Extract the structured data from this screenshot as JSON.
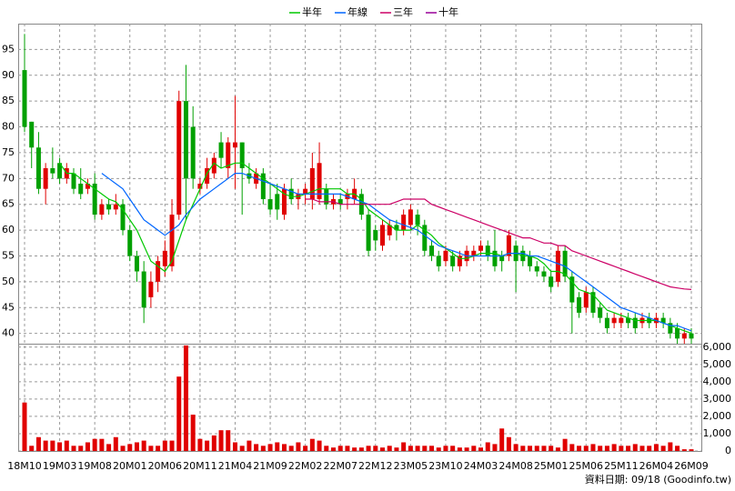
{
  "chart_data": {
    "type": "candlestick",
    "categories": [
      "18M10",
      null,
      null,
      null,
      null,
      "19M03",
      null,
      null,
      null,
      null,
      "19M08",
      null,
      null,
      null,
      null,
      "20M01",
      null,
      null,
      null,
      null,
      "20M06",
      null,
      null,
      null,
      null,
      "20M11",
      null,
      null,
      null,
      null,
      "21M04",
      null,
      null,
      null,
      null,
      "21M09",
      null,
      null,
      null,
      null,
      "22M02",
      null,
      null,
      null,
      null,
      "22M07",
      null,
      null,
      null,
      null,
      "22M12",
      null,
      null,
      null,
      null,
      "23M05",
      null,
      null,
      null,
      null,
      "23M10",
      null,
      null,
      null,
      null,
      "24M03",
      null,
      null,
      null,
      null,
      "24M08",
      null,
      null,
      null,
      null,
      "25M01",
      null,
      null,
      null,
      null,
      "25M06",
      null,
      null,
      null,
      null,
      "25M11",
      null,
      null,
      null,
      null,
      "26M04",
      null,
      null,
      null,
      null,
      "26M09"
    ],
    "open": [
      91,
      81,
      76,
      68,
      72,
      73,
      70,
      71,
      69,
      68,
      69,
      63,
      65,
      64,
      65,
      60,
      55,
      52,
      47,
      50,
      53,
      53,
      63,
      85,
      80,
      68,
      69,
      71,
      77,
      72,
      76,
      77,
      71,
      69,
      71,
      66,
      67,
      63,
      68,
      66,
      67,
      66,
      66,
      68,
      65,
      66,
      66,
      66,
      67,
      63,
      60,
      57,
      59,
      61,
      60,
      61,
      63,
      61,
      57,
      55,
      54,
      55,
      53,
      54,
      55,
      56,
      57,
      56,
      55,
      55,
      57,
      56,
      55,
      53,
      52,
      51,
      50,
      56,
      51,
      47,
      45,
      48,
      45,
      43,
      42,
      42,
      43,
      43,
      42,
      43,
      42,
      43,
      42,
      41,
      39,
      40
    ],
    "high": [
      98,
      81,
      79,
      73,
      76,
      74,
      73,
      72,
      72,
      70,
      71,
      66,
      66,
      67,
      66,
      61,
      56,
      54,
      52,
      55,
      58,
      66,
      87,
      92,
      84,
      70,
      74,
      75,
      79,
      78,
      86,
      77,
      73,
      72,
      72,
      69,
      69,
      69,
      70,
      68,
      69,
      75,
      77,
      69,
      67,
      67,
      68,
      70,
      68,
      64,
      61,
      62,
      62,
      62,
      64,
      65,
      64,
      62,
      58,
      56,
      57,
      56,
      56,
      57,
      57,
      58,
      58,
      60,
      56,
      60,
      58,
      57,
      56,
      54,
      53,
      52,
      57,
      57,
      52,
      48,
      49,
      49,
      46,
      44,
      44,
      44,
      44,
      44,
      44,
      44,
      44,
      44,
      43,
      42,
      41,
      41
    ],
    "low": [
      79,
      72,
      67,
      65,
      70,
      69,
      69,
      67,
      66,
      67,
      62,
      62,
      63,
      63,
      59,
      54,
      50,
      42,
      45,
      48,
      51,
      52,
      62,
      62,
      68,
      67,
      68,
      70,
      72,
      70,
      68,
      63,
      69,
      68,
      65,
      63,
      62,
      62,
      65,
      64,
      65,
      64,
      65,
      64,
      64,
      64,
      64,
      65,
      62,
      55,
      56,
      56,
      58,
      58,
      59,
      60,
      59,
      55,
      54,
      52,
      53,
      52,
      52,
      53,
      54,
      55,
      54,
      52,
      52,
      54,
      48,
      53,
      52,
      51,
      50,
      48,
      49,
      50,
      40,
      43,
      44,
      43,
      42,
      40,
      41,
      41,
      41,
      40,
      41,
      41,
      41,
      41,
      39,
      38,
      38,
      38
    ],
    "close": [
      80,
      76,
      68,
      72,
      71,
      70,
      72,
      68,
      67,
      69,
      63,
      65,
      64,
      65,
      60,
      55,
      52,
      45,
      50,
      54,
      56,
      63,
      85,
      70,
      70,
      69,
      72,
      74,
      74,
      77,
      77,
      72,
      70,
      71,
      66,
      64,
      64,
      68,
      66,
      67,
      68,
      72,
      73,
      65,
      66,
      65,
      67,
      68,
      63,
      56,
      58,
      61,
      61,
      60,
      63,
      64,
      61,
      56,
      55,
      53,
      56,
      53,
      55,
      56,
      56,
      57,
      55,
      53,
      54,
      59,
      54,
      54,
      53,
      52,
      51,
      49,
      56,
      51,
      46,
      44,
      48,
      44,
      43,
      41,
      43,
      43,
      42,
      41,
      43,
      42,
      43,
      42,
      40,
      39,
      40,
      39
    ],
    "up_color": "#e00000",
    "down_color": "#00a000",
    "series": [
      {
        "name": "半年",
        "color": "#00c800",
        "values": [
          null,
          null,
          null,
          null,
          null,
          73,
          71,
          71,
          70,
          69,
          68,
          67,
          66,
          65.5,
          64,
          62,
          60,
          57,
          54,
          53,
          52,
          54,
          58,
          62,
          65,
          68,
          71,
          73,
          72,
          72.5,
          73,
          73,
          72,
          71,
          70,
          69,
          68,
          67,
          66.5,
          66.5,
          67,
          67.5,
          68,
          68,
          68,
          68,
          67,
          67,
          66,
          64,
          63,
          62,
          61,
          60,
          60,
          60,
          61,
          60,
          59,
          57.5,
          56.5,
          55.5,
          54.5,
          54.5,
          55,
          55.5,
          55.5,
          55.5,
          55,
          55.5,
          55.5,
          55,
          55,
          54.5,
          53.5,
          52,
          52,
          51.5,
          50,
          48.5,
          48,
          47.5,
          46,
          44.5,
          44,
          43.5,
          43,
          42.5,
          42.5,
          42.5,
          42.5,
          42,
          41.5,
          41,
          40.5,
          40
        ]
      },
      {
        "name": "年線",
        "color": "#0066ff",
        "values": [
          null,
          null,
          null,
          null,
          null,
          null,
          null,
          null,
          null,
          null,
          null,
          71,
          70,
          69,
          68,
          66,
          64,
          62,
          61,
          60,
          59,
          60,
          61,
          63,
          64.5,
          66,
          67,
          68,
          69,
          70,
          71,
          71,
          70.5,
          70,
          69.5,
          69,
          68.5,
          68,
          67.5,
          67,
          67,
          67,
          67,
          67,
          67,
          67,
          66.5,
          66,
          65.5,
          65,
          64,
          63,
          62,
          61.5,
          61,
          60.5,
          60,
          59,
          58,
          57,
          56.5,
          56,
          55.5,
          55,
          55,
          55,
          55,
          55,
          55,
          55.5,
          55.5,
          55.5,
          55,
          55,
          54.5,
          54,
          53.5,
          53,
          52,
          51,
          50,
          49,
          48,
          47,
          46,
          45,
          44.5,
          44,
          43.5,
          43,
          42.5,
          42,
          41.5,
          41.5,
          41,
          40.5
        ]
      },
      {
        "name": "三年",
        "color": "#cc0066",
        "values": [
          null,
          null,
          null,
          null,
          null,
          null,
          null,
          null,
          null,
          null,
          null,
          null,
          null,
          null,
          null,
          null,
          null,
          null,
          null,
          null,
          null,
          null,
          null,
          null,
          null,
          null,
          null,
          null,
          null,
          null,
          null,
          null,
          null,
          null,
          null,
          null,
          null,
          null,
          null,
          null,
          66,
          66,
          65.5,
          65.5,
          65.5,
          65,
          65,
          65,
          65,
          65,
          65,
          65,
          65,
          65.5,
          66,
          66,
          66,
          66,
          65,
          64.5,
          64,
          63.5,
          63,
          62.5,
          62,
          61.5,
          61,
          60.5,
          60,
          59.5,
          59,
          58.5,
          58.5,
          58,
          57.5,
          57.5,
          57,
          57,
          56,
          55.5,
          55,
          54.5,
          54,
          53.5,
          53,
          52.5,
          52,
          51.5,
          51,
          50.5,
          50,
          49.5,
          49,
          48.8,
          48.6,
          48.5
        ]
      },
      {
        "name": "十年",
        "color": "#990099",
        "values": [
          null,
          null,
          null,
          null,
          null,
          null,
          null,
          null,
          null,
          null,
          null,
          null,
          null,
          null,
          null,
          null,
          null,
          null,
          null,
          null,
          null,
          null,
          null,
          null,
          null,
          null,
          null,
          null,
          null,
          null,
          null,
          null,
          null,
          null,
          null,
          null,
          null,
          null,
          null,
          null,
          null,
          null,
          null,
          null,
          null,
          null,
          null,
          null,
          null,
          null,
          null,
          null,
          null,
          null,
          null,
          null,
          null,
          null,
          null,
          null,
          null,
          null,
          null,
          null,
          null,
          null,
          null,
          null,
          null,
          null,
          null,
          null,
          null,
          null,
          null,
          null,
          null,
          null,
          null,
          null,
          null,
          null,
          null,
          null,
          null,
          null,
          null,
          null,
          null,
          null,
          null,
          null,
          null,
          null,
          null,
          null
        ]
      }
    ],
    "ylim": [
      38,
      100
    ],
    "yticks": [
      40,
      45,
      50,
      55,
      60,
      65,
      70,
      75,
      80,
      85,
      90,
      95
    ],
    "grid": true,
    "volume": {
      "color": "#e00000",
      "values": [
        2800,
        300,
        800,
        600,
        600,
        500,
        600,
        300,
        300,
        500,
        700,
        700,
        400,
        800,
        300,
        400,
        500,
        600,
        300,
        300,
        600,
        600,
        4300,
        6100,
        2100,
        700,
        600,
        900,
        1200,
        1200,
        500,
        300,
        600,
        400,
        300,
        400,
        500,
        400,
        300,
        500,
        300,
        700,
        600,
        300,
        200,
        300,
        300,
        200,
        200,
        300,
        300,
        200,
        300,
        200,
        500,
        300,
        300,
        300,
        300,
        200,
        300,
        300,
        200,
        200,
        300,
        200,
        500,
        400,
        1300,
        800,
        400,
        300,
        300,
        300,
        300,
        300,
        200,
        700,
        400,
        300,
        300,
        400,
        300,
        300,
        400,
        300,
        300,
        400,
        300,
        300,
        400,
        300,
        500,
        300,
        100,
        100
      ],
      "ylim": [
        0,
        6200
      ],
      "yticks": [
        0,
        {
          "value": 1000,
          "label": "1,000"
        },
        {
          "value": 2000,
          "label": "2,000"
        },
        {
          "value": 3000,
          "label": "3,000"
        },
        {
          "value": 4000,
          "label": "4,000"
        },
        {
          "value": 5000,
          "label": "5,000"
        },
        {
          "value": 6000,
          "label": "6,000"
        }
      ]
    },
    "source": "資料日期: 09/18 (Goodinfo.tw)"
  }
}
